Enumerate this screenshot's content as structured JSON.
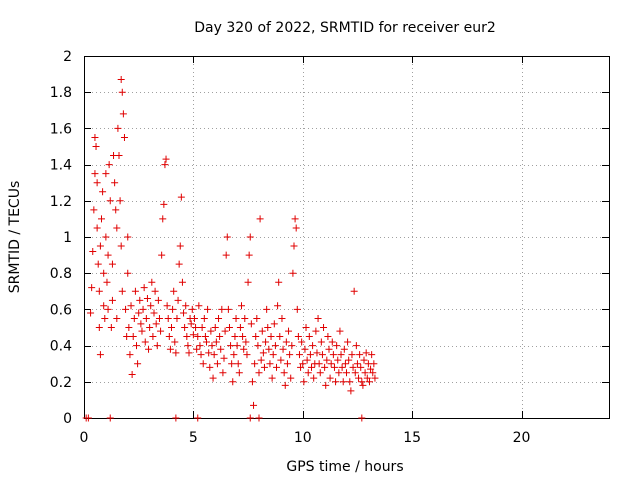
{
  "chart_data": {
    "type": "scatter",
    "title": "Day 320 of 2022, SRMTID for receiver eur2",
    "xlabel": "GPS time / hours",
    "ylabel": "SRMTID / TECUs",
    "xlim": [
      0,
      24
    ],
    "ylim": [
      0,
      2
    ],
    "xticks": [
      0,
      5,
      10,
      15,
      20
    ],
    "xtick_labels": [
      "0",
      "5",
      "10",
      "15",
      "20"
    ],
    "yticks": [
      0,
      0.2,
      0.4,
      0.6,
      0.8,
      1,
      1.2,
      1.4,
      1.6,
      1.8,
      2
    ],
    "ytick_labels": [
      "0",
      "0.2",
      "0.4",
      "0.6",
      "0.8",
      "1",
      "1.2",
      "1.4",
      "1.6",
      "1.8",
      "2"
    ],
    "grid": true,
    "marker": "plus",
    "color": "#e00000",
    "series": [
      {
        "name": "SRMTID",
        "points": [
          [
            0.1,
            0.0
          ],
          [
            0.2,
            0.0
          ],
          [
            1.2,
            0.0
          ],
          [
            4.2,
            0.0
          ],
          [
            5.2,
            0.0
          ],
          [
            7.6,
            0.0
          ],
          [
            8.0,
            0.0
          ],
          [
            12.7,
            0.0
          ],
          [
            0.3,
            0.58
          ],
          [
            0.35,
            0.72
          ],
          [
            0.4,
            0.92
          ],
          [
            0.45,
            1.15
          ],
          [
            0.5,
            1.35
          ],
          [
            0.5,
            1.55
          ],
          [
            0.55,
            1.5
          ],
          [
            0.6,
            1.3
          ],
          [
            0.6,
            1.05
          ],
          [
            0.65,
            0.85
          ],
          [
            0.7,
            0.7
          ],
          [
            0.7,
            0.5
          ],
          [
            0.75,
            0.35
          ],
          [
            0.75,
            0.95
          ],
          [
            0.8,
            1.1
          ],
          [
            0.85,
            1.25
          ],
          [
            0.9,
            0.8
          ],
          [
            0.9,
            0.62
          ],
          [
            0.95,
            0.55
          ],
          [
            1.0,
            1.35
          ],
          [
            1.0,
            1.0
          ],
          [
            1.05,
            0.75
          ],
          [
            1.1,
            0.6
          ],
          [
            1.1,
            0.9
          ],
          [
            1.15,
            1.4
          ],
          [
            1.2,
            1.2
          ],
          [
            1.25,
            0.5
          ],
          [
            1.3,
            0.65
          ],
          [
            1.3,
            0.85
          ],
          [
            1.35,
            1.45
          ],
          [
            1.4,
            1.3
          ],
          [
            1.45,
            1.15
          ],
          [
            1.5,
            1.05
          ],
          [
            1.5,
            0.55
          ],
          [
            1.55,
            1.6
          ],
          [
            1.6,
            1.45
          ],
          [
            1.65,
            1.2
          ],
          [
            1.7,
            0.95
          ],
          [
            1.75,
            0.7
          ],
          [
            1.7,
            1.87
          ],
          [
            1.75,
            1.8
          ],
          [
            1.8,
            1.68
          ],
          [
            1.85,
            1.55
          ],
          [
            1.9,
            0.6
          ],
          [
            1.95,
            0.45
          ],
          [
            2.0,
            1.0
          ],
          [
            2.0,
            0.8
          ],
          [
            2.05,
            0.5
          ],
          [
            2.1,
            0.35
          ],
          [
            2.15,
            0.62
          ],
          [
            2.2,
            0.24
          ],
          [
            2.25,
            0.45
          ],
          [
            2.3,
            0.55
          ],
          [
            2.35,
            0.7
          ],
          [
            2.4,
            0.4
          ],
          [
            2.45,
            0.3
          ],
          [
            2.5,
            0.58
          ],
          [
            2.55,
            0.65
          ],
          [
            2.6,
            0.52
          ],
          [
            2.65,
            0.48
          ],
          [
            2.7,
            0.6
          ],
          [
            2.75,
            0.72
          ],
          [
            2.8,
            0.42
          ],
          [
            2.85,
            0.55
          ],
          [
            2.9,
            0.66
          ],
          [
            2.95,
            0.38
          ],
          [
            3.0,
            0.5
          ],
          [
            3.05,
            0.62
          ],
          [
            3.1,
            0.75
          ],
          [
            3.15,
            0.45
          ],
          [
            3.2,
            0.58
          ],
          [
            3.25,
            0.7
          ],
          [
            3.3,
            0.52
          ],
          [
            3.35,
            0.4
          ],
          [
            3.4,
            0.65
          ],
          [
            3.45,
            0.55
          ],
          [
            3.5,
            0.48
          ],
          [
            3.55,
            0.9
          ],
          [
            3.6,
            1.1
          ],
          [
            3.65,
            1.18
          ],
          [
            3.7,
            1.4
          ],
          [
            3.75,
            1.43
          ],
          [
            3.8,
            0.62
          ],
          [
            3.85,
            0.55
          ],
          [
            3.9,
            0.45
          ],
          [
            3.95,
            0.38
          ],
          [
            4.0,
            0.5
          ],
          [
            4.05,
            0.6
          ],
          [
            4.1,
            0.7
          ],
          [
            4.15,
            0.42
          ],
          [
            4.2,
            0.36
          ],
          [
            4.25,
            0.55
          ],
          [
            4.3,
            0.65
          ],
          [
            4.35,
            0.85
          ],
          [
            4.4,
            0.95
          ],
          [
            4.45,
            1.22
          ],
          [
            4.5,
            0.75
          ],
          [
            4.55,
            0.58
          ],
          [
            4.6,
            0.5
          ],
          [
            4.65,
            0.62
          ],
          [
            4.7,
            0.45
          ],
          [
            4.75,
            0.4
          ],
          [
            4.8,
            0.36
          ],
          [
            4.85,
            0.55
          ],
          [
            4.9,
            0.52
          ],
          [
            4.95,
            0.6
          ],
          [
            5.0,
            0.46
          ],
          [
            5.05,
            0.55
          ],
          [
            5.1,
            0.5
          ],
          [
            5.15,
            0.38
          ],
          [
            5.2,
            0.45
          ],
          [
            5.25,
            0.62
          ],
          [
            5.3,
            0.4
          ],
          [
            5.35,
            0.35
          ],
          [
            5.4,
            0.5
          ],
          [
            5.45,
            0.3
          ],
          [
            5.5,
            0.55
          ],
          [
            5.55,
            0.45
          ],
          [
            5.6,
            0.42
          ],
          [
            5.65,
            0.6
          ],
          [
            5.7,
            0.36
          ],
          [
            5.75,
            0.28
          ],
          [
            5.8,
            0.48
          ],
          [
            5.85,
            0.4
          ],
          [
            5.9,
            0.22
          ],
          [
            5.95,
            0.35
          ],
          [
            6.0,
            0.5
          ],
          [
            6.05,
            0.42
          ],
          [
            6.1,
            0.3
          ],
          [
            6.15,
            0.55
          ],
          [
            6.2,
            0.45
          ],
          [
            6.25,
            0.38
          ],
          [
            6.3,
            0.6
          ],
          [
            6.35,
            0.25
          ],
          [
            6.4,
            0.33
          ],
          [
            6.45,
            0.48
          ],
          [
            6.5,
            0.9
          ],
          [
            6.55,
            1.0
          ],
          [
            6.6,
            0.6
          ],
          [
            6.65,
            0.5
          ],
          [
            6.7,
            0.4
          ],
          [
            6.75,
            0.3
          ],
          [
            6.8,
            0.2
          ],
          [
            6.85,
            0.35
          ],
          [
            6.9,
            0.45
          ],
          [
            6.95,
            0.55
          ],
          [
            7.0,
            0.4
          ],
          [
            7.05,
            0.3
          ],
          [
            7.1,
            0.25
          ],
          [
            7.15,
            0.5
          ],
          [
            7.2,
            0.62
          ],
          [
            7.25,
            0.45
          ],
          [
            7.3,
            0.38
          ],
          [
            7.35,
            0.55
          ],
          [
            7.4,
            0.42
          ],
          [
            7.45,
            0.35
          ],
          [
            7.5,
            0.75
          ],
          [
            7.55,
            0.9
          ],
          [
            7.6,
            1.0
          ],
          [
            7.65,
            0.52
          ],
          [
            7.7,
            0.2
          ],
          [
            7.75,
            0.07
          ],
          [
            7.8,
            0.3
          ],
          [
            7.85,
            0.45
          ],
          [
            7.9,
            0.55
          ],
          [
            7.95,
            0.4
          ],
          [
            8.0,
            0.25
          ],
          [
            8.05,
            1.1
          ],
          [
            8.1,
            0.32
          ],
          [
            8.15,
            0.48
          ],
          [
            8.2,
            0.36
          ],
          [
            8.25,
            0.28
          ],
          [
            8.3,
            0.42
          ],
          [
            8.35,
            0.6
          ],
          [
            8.4,
            0.5
          ],
          [
            8.45,
            0.38
          ],
          [
            8.5,
            0.3
          ],
          [
            8.55,
            0.45
          ],
          [
            8.6,
            0.22
          ],
          [
            8.65,
            0.35
          ],
          [
            8.7,
            0.52
          ],
          [
            8.75,
            0.4
          ],
          [
            8.8,
            0.28
          ],
          [
            8.85,
            0.62
          ],
          [
            8.9,
            0.75
          ],
          [
            8.95,
            0.45
          ],
          [
            9.0,
            0.32
          ],
          [
            9.05,
            0.55
          ],
          [
            9.1,
            0.38
          ],
          [
            9.15,
            0.25
          ],
          [
            9.2,
            0.18
          ],
          [
            9.25,
            0.42
          ],
          [
            9.3,
            0.3
          ],
          [
            9.35,
            0.48
          ],
          [
            9.4,
            0.35
          ],
          [
            9.45,
            0.22
          ],
          [
            9.5,
            0.4
          ],
          [
            9.55,
            0.8
          ],
          [
            9.6,
            0.95
          ],
          [
            9.65,
            1.1
          ],
          [
            9.7,
            1.05
          ],
          [
            9.75,
            0.6
          ],
          [
            9.8,
            0.45
          ],
          [
            9.85,
            0.35
          ],
          [
            9.9,
            0.28
          ],
          [
            9.95,
            0.42
          ],
          [
            10.0,
            0.3
          ],
          [
            10.05,
            0.2
          ],
          [
            10.1,
            0.38
          ],
          [
            10.15,
            0.5
          ],
          [
            10.2,
            0.32
          ],
          [
            10.25,
            0.25
          ],
          [
            10.3,
            0.45
          ],
          [
            10.35,
            0.35
          ],
          [
            10.4,
            0.28
          ],
          [
            10.45,
            0.4
          ],
          [
            10.5,
            0.22
          ],
          [
            10.55,
            0.3
          ],
          [
            10.6,
            0.48
          ],
          [
            10.65,
            0.36
          ],
          [
            10.7,
            0.55
          ],
          [
            10.75,
            0.3
          ],
          [
            10.8,
            0.25
          ],
          [
            10.85,
            0.42
          ],
          [
            10.9,
            0.35
          ],
          [
            10.95,
            0.5
          ],
          [
            11.0,
            0.28
          ],
          [
            11.05,
            0.18
          ],
          [
            11.1,
            0.32
          ],
          [
            11.15,
            0.45
          ],
          [
            11.2,
            0.38
          ],
          [
            11.25,
            0.22
          ],
          [
            11.3,
            0.3
          ],
          [
            11.35,
            0.42
          ],
          [
            11.4,
            0.35
          ],
          [
            11.45,
            0.28
          ],
          [
            11.5,
            0.2
          ],
          [
            11.55,
            0.4
          ],
          [
            11.6,
            0.32
          ],
          [
            11.65,
            0.25
          ],
          [
            11.7,
            0.48
          ],
          [
            11.75,
            0.35
          ],
          [
            11.8,
            0.28
          ],
          [
            11.85,
            0.2
          ],
          [
            11.9,
            0.38
          ],
          [
            11.95,
            0.3
          ],
          [
            12.0,
            0.25
          ],
          [
            12.05,
            0.42
          ],
          [
            12.1,
            0.32
          ],
          [
            12.15,
            0.2
          ],
          [
            12.2,
            0.15
          ],
          [
            12.25,
            0.35
          ],
          [
            12.3,
            0.28
          ],
          [
            12.35,
            0.7
          ],
          [
            12.4,
            0.25
          ],
          [
            12.45,
            0.4
          ],
          [
            12.5,
            0.3
          ],
          [
            12.55,
            0.22
          ],
          [
            12.6,
            0.35
          ],
          [
            12.65,
            0.28
          ],
          [
            12.7,
            0.2
          ],
          [
            12.75,
            0.18
          ],
          [
            12.8,
            0.32
          ],
          [
            12.85,
            0.25
          ],
          [
            12.9,
            0.36
          ],
          [
            12.95,
            0.22
          ],
          [
            13.0,
            0.3
          ],
          [
            13.05,
            0.2
          ],
          [
            13.1,
            0.27
          ],
          [
            13.15,
            0.35
          ],
          [
            13.2,
            0.25
          ],
          [
            13.25,
            0.3
          ],
          [
            13.3,
            0.22
          ]
        ]
      }
    ]
  }
}
